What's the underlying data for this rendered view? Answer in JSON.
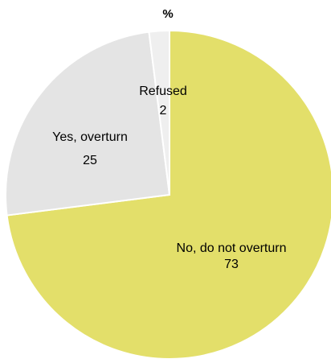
{
  "chart_data": {
    "type": "pie",
    "title": "%",
    "slices": [
      {
        "label": "No, do not overturn",
        "value": 73,
        "value_label": "73",
        "color": "#e3df6a"
      },
      {
        "label": "Yes, overturn",
        "value": 25,
        "value_label": "25",
        "color": "#e4e4e4"
      },
      {
        "label": "Refused",
        "value": 2,
        "value_label": "2",
        "color": "#efefef"
      }
    ]
  }
}
